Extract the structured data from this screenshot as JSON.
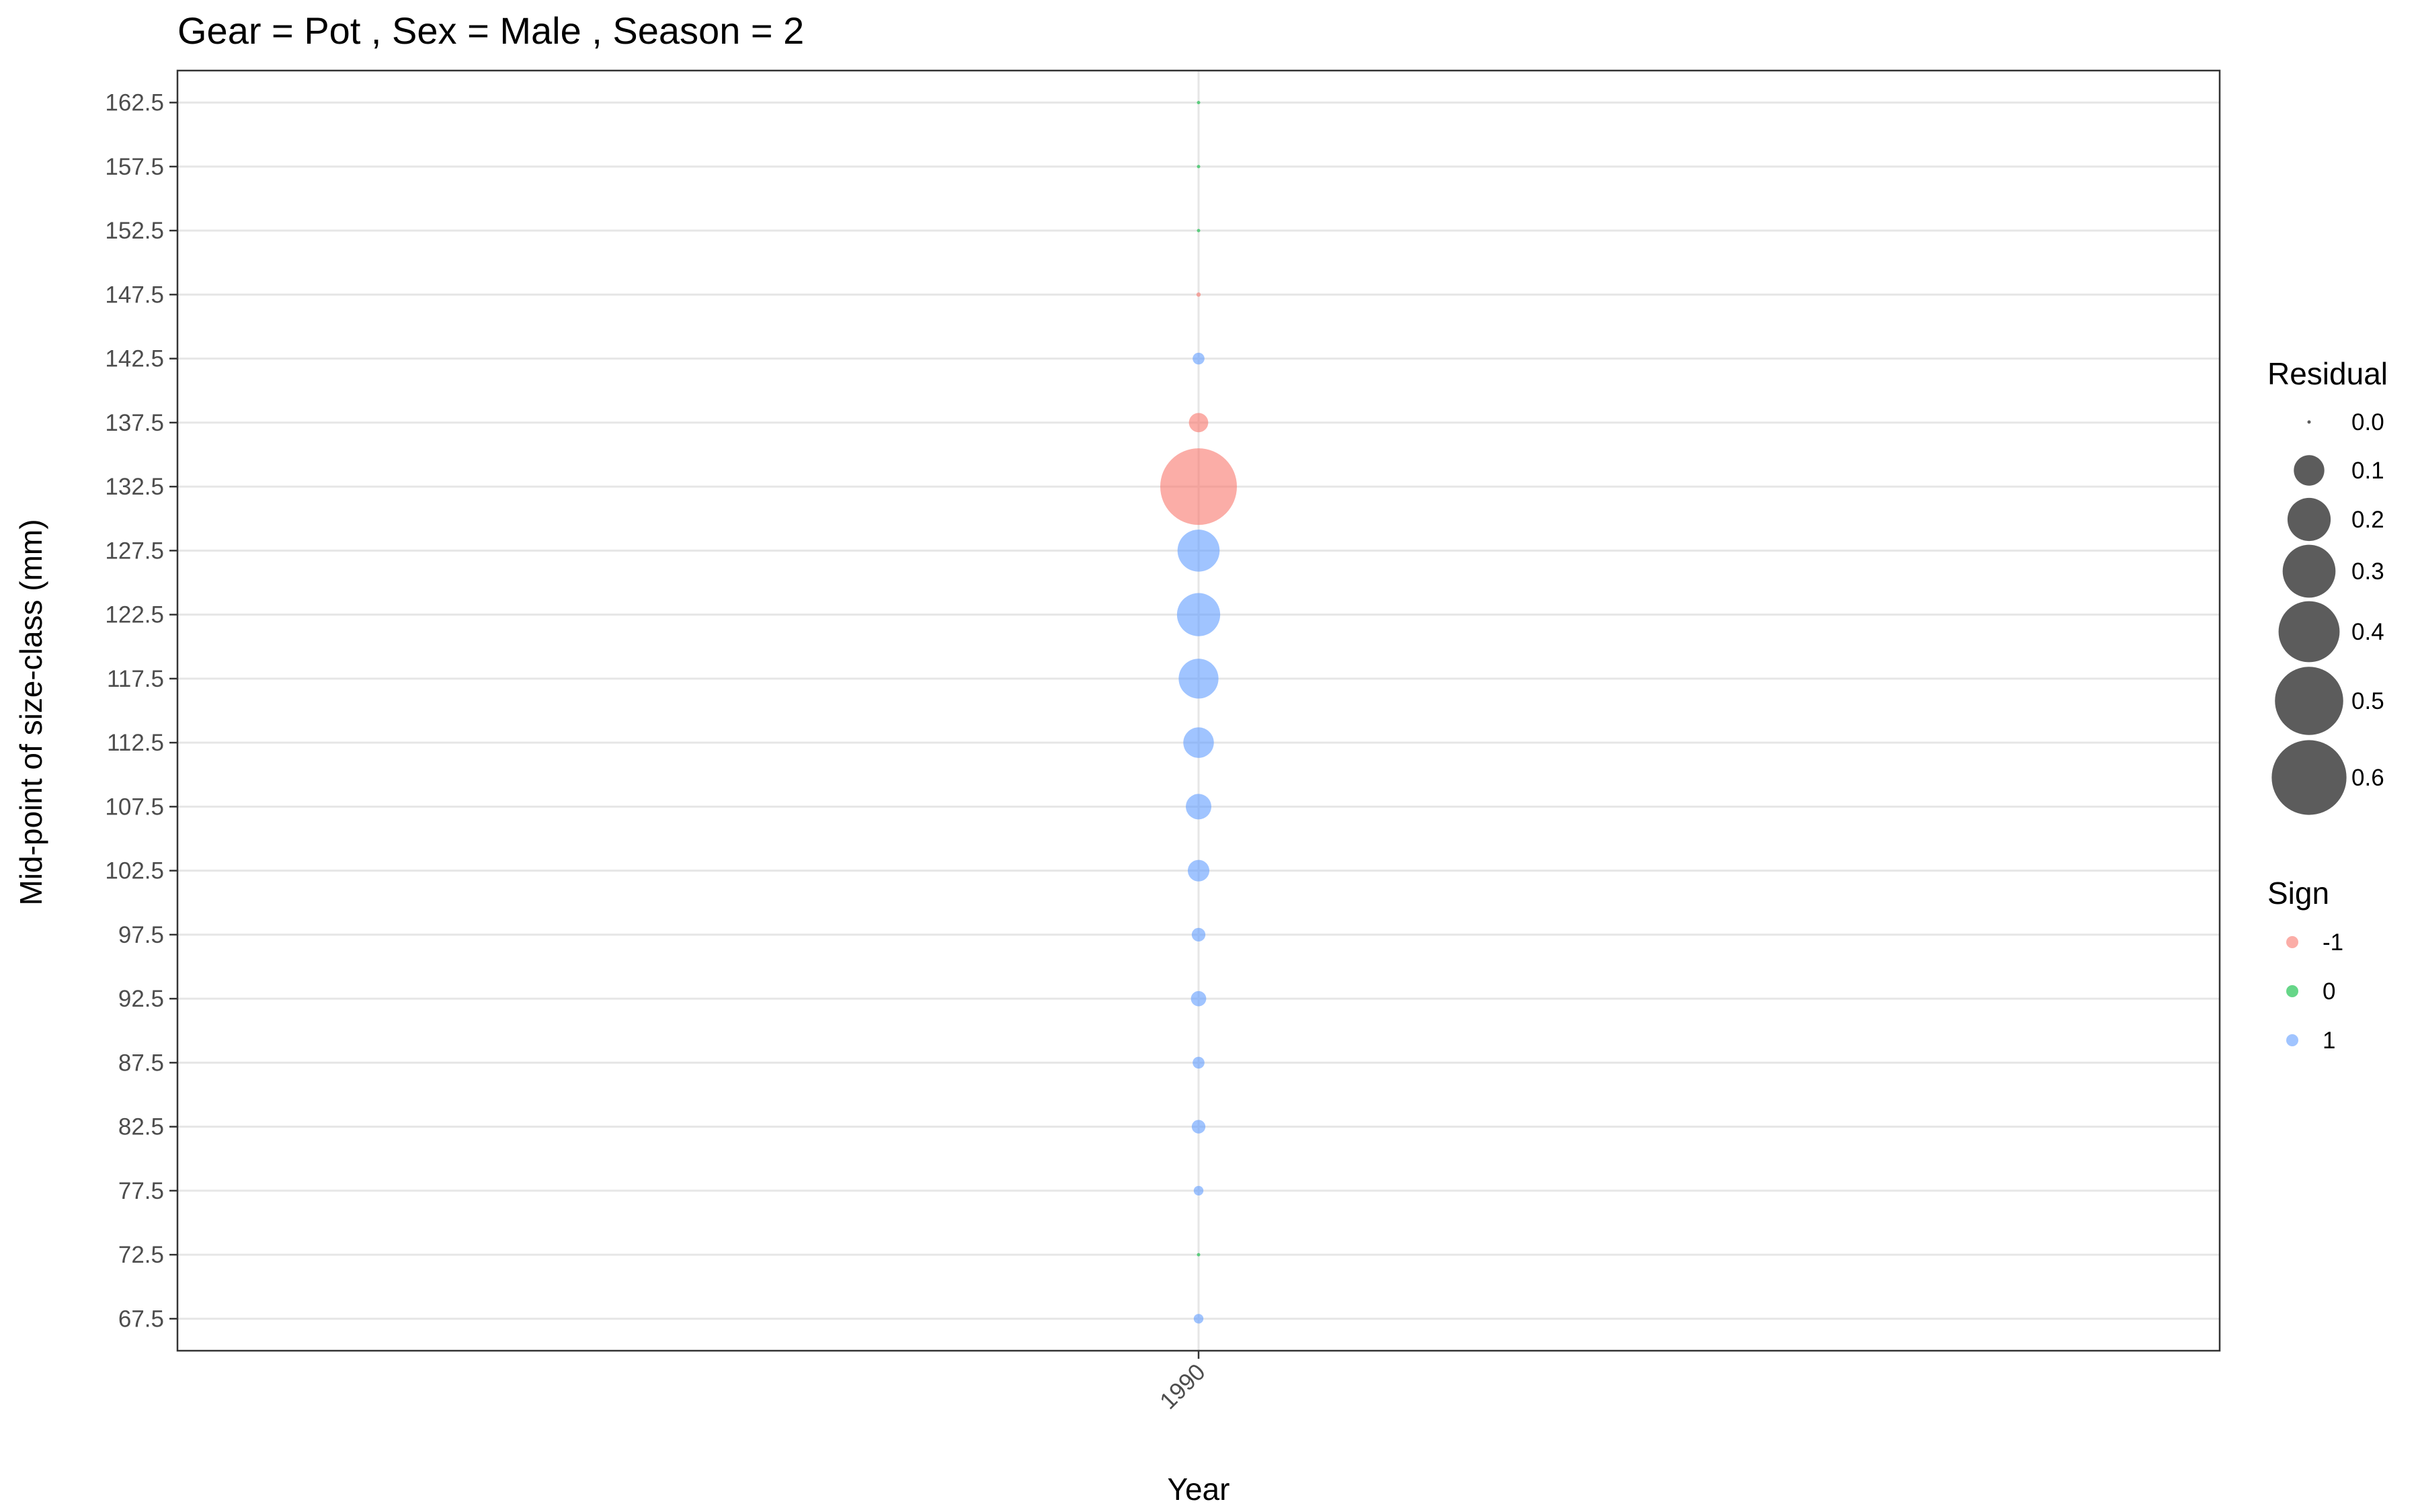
{
  "chart_data": {
    "type": "scatter",
    "title": "Gear = Pot , Sex = Male , Season = 2",
    "xlabel": "Year",
    "ylabel": "Mid-point of size-class (mm)",
    "x_ticks": [
      "1990"
    ],
    "y_ticks": [
      "67.5",
      "72.5",
      "77.5",
      "82.5",
      "87.5",
      "92.5",
      "97.5",
      "102.5",
      "107.5",
      "112.5",
      "117.5",
      "122.5",
      "127.5",
      "132.5",
      "137.5",
      "142.5",
      "147.5",
      "152.5",
      "157.5",
      "162.5"
    ],
    "ylim": [
      65,
      165
    ],
    "grid": true,
    "legend_position": "right",
    "points": [
      {
        "x": 1990,
        "y": 67.5,
        "residual": 0.01,
        "sign": 1
      },
      {
        "x": 1990,
        "y": 72.5,
        "residual": 0.0,
        "sign": 0
      },
      {
        "x": 1990,
        "y": 77.5,
        "residual": 0.01,
        "sign": 1
      },
      {
        "x": 1990,
        "y": 82.5,
        "residual": 0.02,
        "sign": 1
      },
      {
        "x": 1990,
        "y": 87.5,
        "residual": 0.015,
        "sign": 1
      },
      {
        "x": 1990,
        "y": 92.5,
        "residual": 0.025,
        "sign": 1
      },
      {
        "x": 1990,
        "y": 97.5,
        "residual": 0.02,
        "sign": 1
      },
      {
        "x": 1990,
        "y": 102.5,
        "residual": 0.05,
        "sign": 1
      },
      {
        "x": 1990,
        "y": 107.5,
        "residual": 0.07,
        "sign": 1
      },
      {
        "x": 1990,
        "y": 112.5,
        "residual": 0.1,
        "sign": 1
      },
      {
        "x": 1990,
        "y": 117.5,
        "residual": 0.17,
        "sign": 1
      },
      {
        "x": 1990,
        "y": 122.5,
        "residual": 0.2,
        "sign": 1
      },
      {
        "x": 1990,
        "y": 127.5,
        "residual": 0.19,
        "sign": 1
      },
      {
        "x": 1990,
        "y": 132.5,
        "residual": 0.63,
        "sign": -1
      },
      {
        "x": 1990,
        "y": 137.5,
        "residual": 0.04,
        "sign": -1
      },
      {
        "x": 1990,
        "y": 142.5,
        "residual": 0.015,
        "sign": 1
      },
      {
        "x": 1990,
        "y": 147.5,
        "residual": 0.002,
        "sign": -1
      },
      {
        "x": 1990,
        "y": 152.5,
        "residual": 0.001,
        "sign": 0
      },
      {
        "x": 1990,
        "y": 157.5,
        "residual": 0.001,
        "sign": 0
      },
      {
        "x": 1990,
        "y": 162.5,
        "residual": 0.001,
        "sign": 0
      }
    ],
    "legend_size": {
      "title": "Residual",
      "values": [
        0.0,
        0.1,
        0.2,
        0.3,
        0.4,
        0.5,
        0.6
      ],
      "labels": [
        "0.0",
        "0.1",
        "0.2",
        "0.3",
        "0.4",
        "0.5",
        "0.6"
      ]
    },
    "legend_color": {
      "title": "Sign",
      "entries": [
        {
          "label": "-1",
          "sign": -1
        },
        {
          "label": "0",
          "sign": 0
        },
        {
          "label": "1",
          "sign": 1
        }
      ]
    },
    "colors": {
      "neg": "#F8766D",
      "zero": "#00BA38",
      "pos": "#619CFF",
      "size_legend": "#333333",
      "grid": "#e6e6e6",
      "border": "#333333"
    }
  }
}
